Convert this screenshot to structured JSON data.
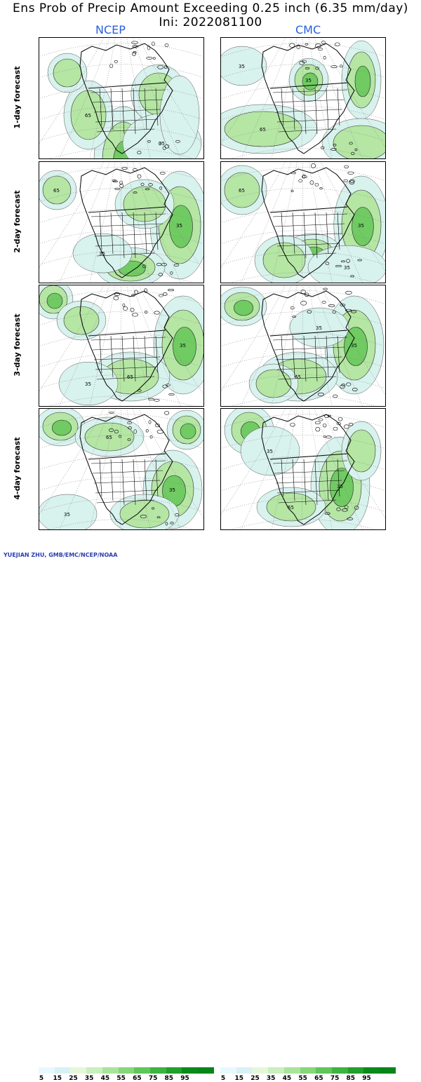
{
  "title": "Ens Prob of Precip Amount Exceeding 0.25 inch (6.35 mm/day)",
  "subtitle": "Ini: 2022081100",
  "models": [
    "NCEP",
    "CMC"
  ],
  "rows": [
    {
      "label": "1-day forecast"
    },
    {
      "label": "2-day forecast"
    },
    {
      "label": "3-day forecast"
    },
    {
      "label": "4-day forecast"
    }
  ],
  "contour_labels": [
    "35",
    "65"
  ],
  "legend": {
    "ticks": [
      "5",
      "15",
      "25",
      "35",
      "45",
      "55",
      "65",
      "75",
      "85",
      "95"
    ],
    "colors": [
      "#e8f8ff",
      "#d7f1f7",
      "#e6f7d9",
      "#c9efbe",
      "#a9e49c",
      "#86d67a",
      "#5fc65a",
      "#3db43f",
      "#21a02b",
      "#0b8a1c"
    ]
  },
  "credit": "YUEJIAN ZHU, GMB/EMC/NCEP/NOAA"
}
